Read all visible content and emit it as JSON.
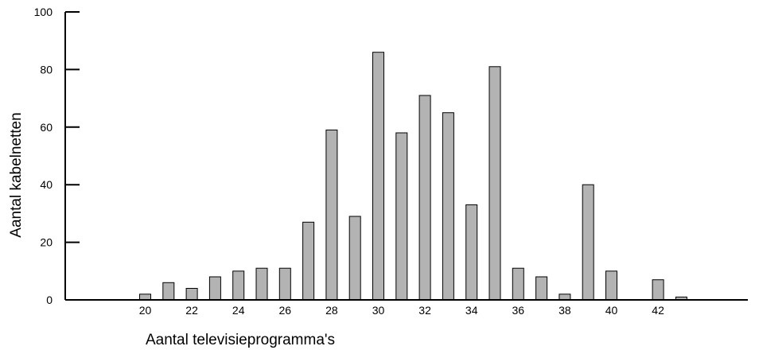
{
  "chart_data": {
    "type": "bar",
    "title": "",
    "xlabel": "Aantal televisieprogramma's",
    "ylabel": "Aantal kabelnetten",
    "x": [
      20,
      21,
      22,
      23,
      24,
      25,
      26,
      27,
      28,
      29,
      30,
      31,
      32,
      33,
      34,
      35,
      36,
      37,
      38,
      39,
      40,
      41,
      42,
      43
    ],
    "values": [
      2,
      6,
      4,
      8,
      10,
      11,
      11,
      27,
      59,
      29,
      86,
      58,
      71,
      65,
      33,
      81,
      11,
      8,
      2,
      40,
      10,
      0,
      7,
      1
    ],
    "x_ticks": [
      "20",
      "22",
      "24",
      "26",
      "28",
      "30",
      "32",
      "34",
      "36",
      "38",
      "40",
      "42"
    ],
    "y_ticks": [
      "0",
      "20",
      "40",
      "60",
      "80",
      "100"
    ],
    "ylim": [
      0,
      100
    ],
    "grid": false,
    "bar_color": "#b3b3b3"
  }
}
